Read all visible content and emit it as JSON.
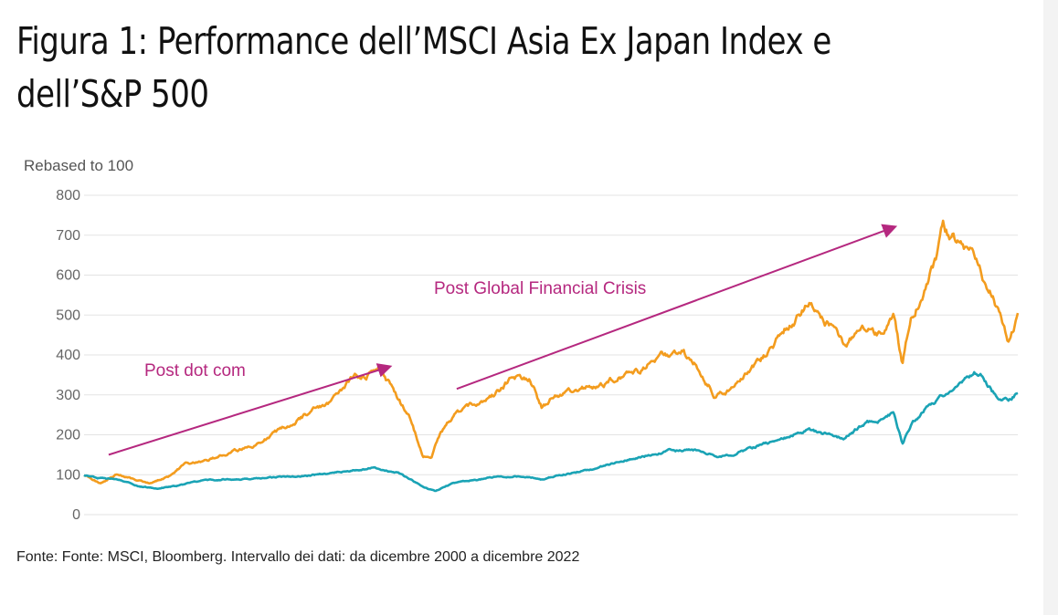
{
  "page": {
    "title": "Figura 1: Performance dell’MSCI Asia Ex Japan Index e dell’S&P 500",
    "source_note": "Fonte: Fonte: MSCI, Bloomberg. Intervallo dei dati: da dicembre 2000 a dicembre 2022"
  },
  "chart_data": {
    "type": "line",
    "title": "",
    "xlabel": "",
    "ylabel": "Rebased to 100",
    "ylim": [
      0,
      800
    ],
    "yticks": [
      "800",
      "700",
      "600",
      "500",
      "400",
      "300",
      "200",
      "100",
      "0"
    ],
    "ytick_values": [
      800,
      700,
      600,
      500,
      400,
      300,
      200,
      100,
      0
    ],
    "xlim": [
      2000.92,
      2022.92
    ],
    "grid": true,
    "legend": "none",
    "series": [
      {
        "name": "Series 1 (orange)",
        "color": "#f39c1e",
        "x": [
          2000.92,
          2001.3,
          2001.7,
          2002.1,
          2002.5,
          2002.9,
          2003.3,
          2003.8,
          2004.4,
          2005.0,
          2005.6,
          2006.2,
          2006.8,
          2007.3,
          2007.7,
          2007.85,
          2008.2,
          2008.6,
          2008.9,
          2009.1,
          2009.3,
          2009.7,
          2010.2,
          2010.6,
          2011.0,
          2011.4,
          2011.7,
          2012.0,
          2012.5,
          2013.0,
          2013.5,
          2014.0,
          2014.5,
          2015.0,
          2015.4,
          2015.8,
          2016.1,
          2016.5,
          2017.0,
          2017.5,
          2018.0,
          2018.3,
          2018.8,
          2019.3,
          2019.7,
          2020.0,
          2020.2,
          2020.4,
          2020.7,
          2021.0,
          2021.15,
          2021.5,
          2021.9,
          2022.3,
          2022.7,
          2022.92
        ],
        "values": [
          100,
          78,
          102,
          88,
          80,
          95,
          125,
          132,
          158,
          175,
          215,
          255,
          290,
          345,
          355,
          380,
          315,
          240,
          150,
          145,
          200,
          255,
          280,
          298,
          340,
          345,
          270,
          300,
          310,
          322,
          345,
          355,
          395,
          410,
          370,
          300,
          310,
          355,
          400,
          470,
          535,
          500,
          430,
          470,
          445,
          505,
          375,
          500,
          555,
          640,
          720,
          680,
          640,
          560,
          430,
          495
        ]
      },
      {
        "name": "Series 2 (teal)",
        "color": "#1aa3b5",
        "x": [
          2000.92,
          2001.3,
          2001.7,
          2002.1,
          2002.6,
          2003.1,
          2003.6,
          2004.2,
          2005.0,
          2005.6,
          2006.2,
          2006.8,
          2007.3,
          2007.8,
          2008.3,
          2008.7,
          2009.0,
          2009.2,
          2009.6,
          2010.2,
          2010.7,
          2011.2,
          2011.7,
          2012.2,
          2012.7,
          2013.3,
          2014.0,
          2014.7,
          2015.4,
          2015.8,
          2016.2,
          2016.8,
          2017.5,
          2018.0,
          2018.3,
          2018.8,
          2019.3,
          2019.8,
          2020.0,
          2020.2,
          2020.4,
          2020.8,
          2021.3,
          2021.9,
          2022.1,
          2022.4,
          2022.7,
          2022.92
        ],
        "values": [
          100,
          92,
          88,
          75,
          65,
          72,
          82,
          88,
          90,
          94,
          98,
          105,
          112,
          118,
          105,
          82,
          66,
          58,
          78,
          88,
          95,
          98,
          88,
          100,
          110,
          125,
          145,
          158,
          162,
          145,
          150,
          172,
          195,
          215,
          205,
          192,
          225,
          245,
          255,
          180,
          225,
          270,
          310,
          355,
          350,
          300,
          285,
          305
        ]
      }
    ],
    "annotations": [
      {
        "text": "Post dot com",
        "arrow_from": [
          2001.5,
          150
        ],
        "arrow_to": [
          2008.1,
          370
        ]
      },
      {
        "text": "Post Global Financial Crisis",
        "arrow_from": [
          2009.7,
          315
        ],
        "arrow_to": [
          2020.0,
          720
        ]
      }
    ]
  }
}
